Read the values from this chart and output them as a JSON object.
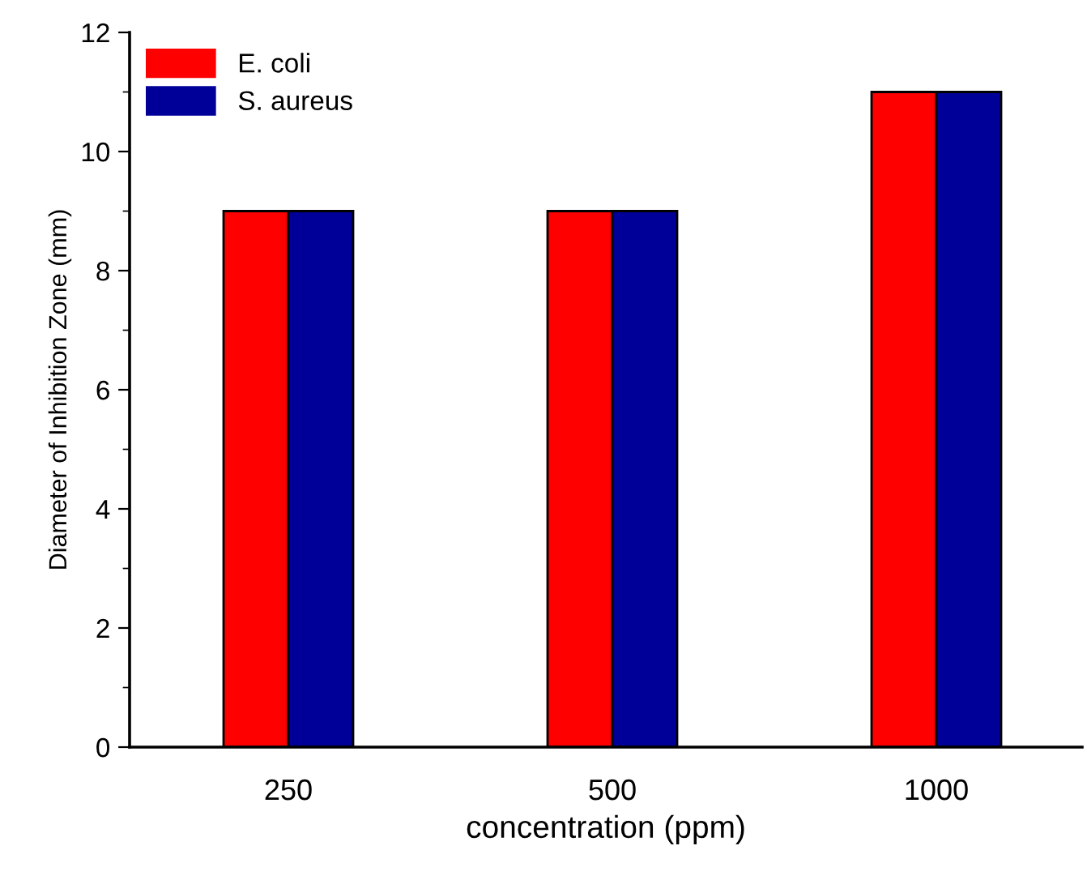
{
  "chart_data": {
    "type": "bar",
    "xlabel": "concentration (ppm)",
    "ylabel": "Diameter of Inhibition Zone (mm)",
    "categories": [
      "250",
      "500",
      "1000"
    ],
    "series": [
      {
        "name": "E. coli",
        "color": "#ff0000",
        "values": [
          9,
          9,
          11
        ]
      },
      {
        "name": "S. aureus",
        "color": "#000099",
        "values": [
          9,
          9,
          11
        ]
      }
    ],
    "ylim": [
      0,
      12
    ],
    "yticks": [
      0,
      2,
      4,
      6,
      8,
      10,
      12
    ],
    "grid": false,
    "legend": "top left"
  }
}
